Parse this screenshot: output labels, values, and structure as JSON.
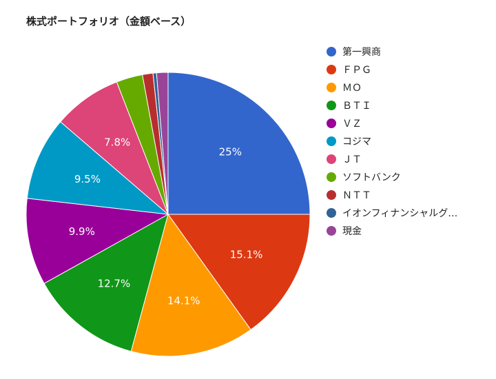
{
  "chart_data": {
    "type": "pie",
    "title": "株式ポートフォリオ（金額ベース）",
    "legend_position": "right",
    "slices": [
      {
        "label": "第一興商",
        "value": 25.0,
        "display": "25%",
        "color": "#3366cc"
      },
      {
        "label": "ＦＰＧ",
        "value": 15.1,
        "display": "15.1%",
        "color": "#dc3912"
      },
      {
        "label": "ＭＯ",
        "value": 14.1,
        "display": "14.1%",
        "color": "#ff9900"
      },
      {
        "label": "ＢＴＩ",
        "value": 12.7,
        "display": "12.7%",
        "color": "#109618"
      },
      {
        "label": "ＶＺ",
        "value": 9.9,
        "display": "9.9%",
        "color": "#990099"
      },
      {
        "label": "コジマ",
        "value": 9.5,
        "display": "9.5%",
        "color": "#0099c6"
      },
      {
        "label": "ＪＴ",
        "value": 7.8,
        "display": "7.8%",
        "color": "#dd4477"
      },
      {
        "label": "ソフトバンク",
        "value": 3.0,
        "display": "",
        "color": "#66aa00"
      },
      {
        "label": "ＮＴＴ",
        "value": 1.2,
        "display": "",
        "color": "#b82e2e"
      },
      {
        "label": "イオンフィナンシャルグ…",
        "value": 0.4,
        "display": "",
        "color": "#316395"
      },
      {
        "label": "現金",
        "value": 1.3,
        "display": "",
        "color": "#994499"
      }
    ]
  }
}
